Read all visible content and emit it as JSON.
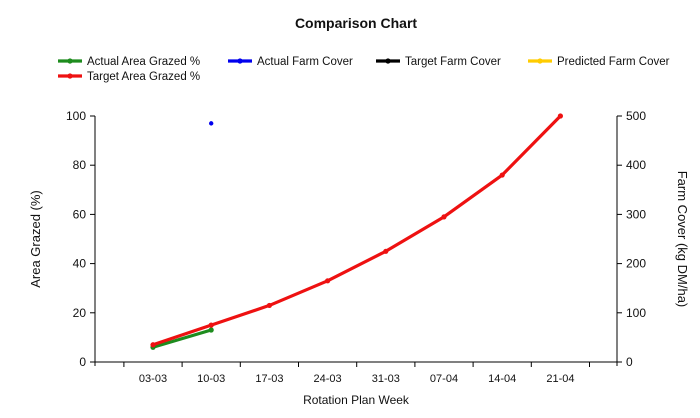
{
  "chart_data": {
    "type": "line",
    "title": "Comparison Chart",
    "xlabel": "Rotation Plan Week",
    "ylabel_left": "Area Grazed (%)",
    "ylabel_right": "Farm Cover (kg DM/ha)",
    "categories": [
      "03-03",
      "10-03",
      "17-03",
      "24-03",
      "31-03",
      "07-04",
      "14-04",
      "21-04"
    ],
    "ylim_left": [
      0,
      100
    ],
    "ylim_right": [
      0,
      500
    ],
    "yticks_left": [
      0,
      20,
      40,
      60,
      80,
      100
    ],
    "yticks_right": [
      0,
      100,
      200,
      300,
      400,
      500
    ],
    "grid": false,
    "legend_position": "top",
    "series": [
      {
        "name": "Actual Area Grazed %",
        "axis": "left",
        "color": "#1e8c1e",
        "values": [
          6,
          13,
          null,
          null,
          null,
          null,
          null,
          null
        ]
      },
      {
        "name": "Actual Farm Cover",
        "axis": "right",
        "color": "#0000ee",
        "values": [
          null,
          485,
          null,
          null,
          null,
          null,
          null,
          null
        ]
      },
      {
        "name": "Target Farm Cover",
        "axis": "right",
        "color": "#000000",
        "values": [
          null,
          null,
          null,
          null,
          null,
          null,
          null,
          null
        ]
      },
      {
        "name": "Predicted Farm Cover",
        "axis": "right",
        "color": "#ffcc00",
        "values": [
          null,
          null,
          null,
          null,
          null,
          null,
          null,
          null
        ]
      },
      {
        "name": "Target Area Grazed %",
        "axis": "left",
        "color": "#ee1111",
        "values": [
          7,
          15,
          23,
          33,
          45,
          59,
          76,
          100
        ]
      }
    ]
  }
}
